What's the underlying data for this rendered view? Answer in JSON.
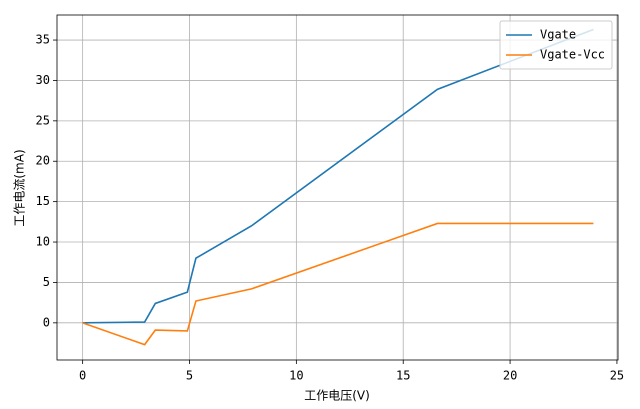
{
  "chart_data": {
    "type": "line",
    "x": [
      0,
      2.9,
      3.4,
      4.9,
      5.3,
      7.9,
      16.6,
      22.5,
      23.9
    ],
    "series": [
      {
        "name": "Vgate",
        "color": "#1f77b4",
        "values": [
          0,
          0.1,
          2.4,
          3.8,
          8,
          12,
          28.9,
          34.9,
          36.3
        ]
      },
      {
        "name": "Vgate-Vcc",
        "color": "#ff7f0e",
        "values": [
          0,
          -2.7,
          -0.9,
          -1.0,
          2.7,
          4.2,
          12.3,
          12.3,
          12.3
        ]
      }
    ],
    "xlabel": "工作电压(V)",
    "ylabel": "工作电流(mA)",
    "xlim": [
      -1.2,
      25.05
    ],
    "ylim": [
      -4.6,
      38.1
    ],
    "xticks": [
      0,
      5,
      10,
      15,
      20,
      25
    ],
    "yticks": [
      0,
      5,
      10,
      15,
      20,
      25,
      30,
      35
    ],
    "grid": true,
    "legend": "upper right"
  }
}
